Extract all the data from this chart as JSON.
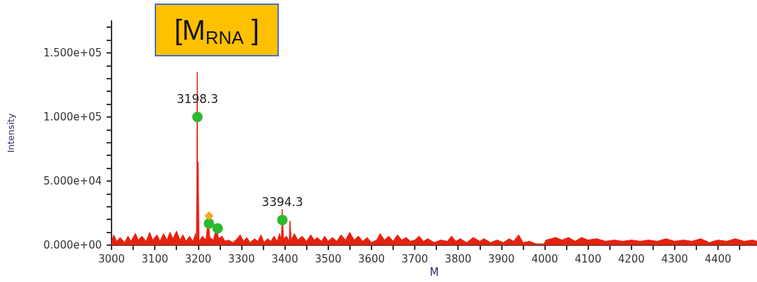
{
  "chart_data": {
    "type": "area",
    "xlabel": "M",
    "ylabel": "Intensity",
    "annotations": [
      "[M$_{RNA}$ ]",
      {
        "text": "3198.3",
        "x": 3198.3,
        "y": 100000
      },
      {
        "text": "3394.3",
        "x": 3394.3,
        "y": 19500
      }
    ],
    "xlim": [
      3000,
      4490
    ],
    "xticks": [
      3000,
      {
        "value": 3050,
        "label": null
      },
      3100,
      {
        "value": 3150,
        "label": null
      },
      3200,
      {
        "value": 3250,
        "label": null
      },
      3300,
      {
        "value": 3350,
        "label": null
      },
      3400,
      {
        "value": 3450,
        "label": null
      },
      3500,
      {
        "value": 3550,
        "label": null
      },
      3600,
      {
        "value": 3650,
        "label": null
      },
      3700,
      {
        "value": 3750,
        "label": null
      },
      3800,
      {
        "value": 3850,
        "label": null
      },
      3900,
      {
        "value": 3950,
        "label": null
      },
      4000,
      {
        "value": 4050,
        "label": null
      },
      4100,
      {
        "value": 4150,
        "label": null
      },
      4200,
      {
        "value": 4250,
        "label": null
      },
      4300,
      {
        "value": 4350,
        "label": null
      },
      4400,
      {
        "value": 4450,
        "label": null
      }
    ],
    "ylim": [
      0,
      175000
    ],
    "yticks": [
      {
        "value": 0,
        "label": "0.000e+00"
      },
      {
        "value": 10000,
        "label": null
      },
      {
        "value": 20000,
        "label": null
      },
      {
        "value": 30000,
        "label": null
      },
      {
        "value": 40000,
        "label": null
      },
      {
        "value": 50000,
        "label": "5.000e+04"
      },
      {
        "value": 60000,
        "label": null
      },
      {
        "value": 70000,
        "label": null
      },
      {
        "value": 80000,
        "label": null
      },
      {
        "value": 90000,
        "label": null
      },
      {
        "value": 100000,
        "label": "1.000e+05"
      },
      {
        "value": 110000,
        "label": null
      },
      {
        "value": 120000,
        "label": null
      },
      {
        "value": 130000,
        "label": null
      },
      {
        "value": 140000,
        "label": null
      },
      {
        "value": 150000,
        "label": "1.500e+05"
      },
      {
        "value": 160000,
        "label": null
      },
      {
        "value": 170000,
        "label": null
      }
    ],
    "grid": false,
    "series": [
      {
        "color": "#e8210f",
        "marker": "none",
        "x": [
          3000,
          3005,
          3012,
          3020,
          3030,
          3038,
          3045,
          3055,
          3062,
          3070,
          3080,
          3088,
          3095,
          3105,
          3112,
          3120,
          3128,
          3135,
          3142,
          3150,
          3158,
          3165,
          3172,
          3180,
          3188,
          3194,
          3196,
          3198,
          3199,
          3200,
          3202,
          3210,
          3218,
          3223,
          3227,
          3235,
          3243,
          3247,
          3255,
          3262,
          3270,
          3280,
          3290,
          3297,
          3305,
          3312,
          3320,
          3330,
          3338,
          3345,
          3352,
          3360,
          3368,
          3375,
          3382,
          3388,
          3392,
          3394,
          3397,
          3404,
          3410,
          3412,
          3415,
          3422,
          3430,
          3440,
          3450,
          3460,
          3468,
          3475,
          3485,
          3492,
          3500,
          3510,
          3520,
          3530,
          3540,
          3550,
          3560,
          3570,
          3580,
          3590,
          3600,
          3612,
          3620,
          3630,
          3640,
          3650,
          3660,
          3670,
          3680,
          3690,
          3700,
          3710,
          3720,
          3730,
          3745,
          3760,
          3775,
          3785,
          3795,
          3805,
          3820,
          3835,
          3850,
          3860,
          3875,
          3890,
          3905,
          3918,
          3928,
          3940,
          3950,
          3965,
          3980,
          3998,
          4003,
          4015,
          4025,
          4040,
          4055,
          4070,
          4085,
          4100,
          4120,
          4140,
          4160,
          4180,
          4200,
          4220,
          4240,
          4260,
          4280,
          4300,
          4320,
          4340,
          4360,
          4380,
          4400,
          4420,
          4440,
          4460,
          4480,
          4490
        ],
        "values": [
          2000,
          8000,
          3000,
          6000,
          2000,
          7000,
          3000,
          9000,
          4000,
          7000,
          3000,
          10000,
          4000,
          8000,
          3000,
          9000,
          4000,
          10000,
          5000,
          11000,
          4000,
          8000,
          3000,
          7000,
          3000,
          9000,
          3000,
          135000,
          4000,
          65000,
          3000,
          7000,
          4000,
          20000,
          6000,
          4000,
          14000,
          5000,
          7000,
          3000,
          4000,
          2000,
          5000,
          8000,
          3000,
          6000,
          2000,
          5000,
          3000,
          8000,
          2000,
          5000,
          3000,
          7000,
          3000,
          9000,
          4000,
          28000,
          5000,
          7000,
          3000,
          19000,
          4000,
          9000,
          4000,
          7000,
          3000,
          8000,
          4000,
          6000,
          3000,
          7000,
          3000,
          6000,
          3000,
          8000,
          4000,
          10000,
          4000,
          7000,
          3000,
          6000,
          2000,
          4000,
          9000,
          4000,
          7000,
          3000,
          8000,
          4000,
          6000,
          3000,
          4000,
          7000,
          3000,
          5000,
          2000,
          4000,
          3000,
          7000,
          3000,
          5000,
          2000,
          6000,
          3000,
          5000,
          2000,
          4000,
          2000,
          5000,
          3000,
          8000,
          2000,
          3000,
          1000,
          1000,
          4000,
          5000,
          6000,
          4000,
          6000,
          3000,
          6000,
          4000,
          5000,
          3000,
          4000,
          3000,
          4000,
          3000,
          4000,
          3000,
          5000,
          3000,
          4000,
          3000,
          5000,
          2000,
          4000,
          3000,
          5000,
          3000,
          4000,
          3000
        ]
      },
      {
        "type": "scatter",
        "color": "#2eb82e",
        "marker": "circle",
        "x": [
          3198.3,
          3225,
          3245,
          3394.3
        ],
        "values": [
          100000,
          16800,
          13000,
          19500
        ]
      },
      {
        "type": "scatter",
        "color": "#f5a623",
        "marker": "diamond",
        "x": [
          3225
        ],
        "values": [
          22800
        ]
      }
    ]
  }
}
